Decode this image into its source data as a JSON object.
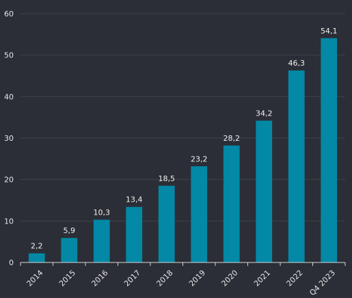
{
  "chart_data": {
    "type": "bar",
    "title": "",
    "xlabel": "",
    "ylabel": "",
    "categories": [
      "2014",
      "2015",
      "2016",
      "2017",
      "2018",
      "2019",
      "2020",
      "2021",
      "2022",
      "Q4 2023"
    ],
    "values": [
      2.2,
      5.9,
      10.3,
      13.4,
      18.5,
      23.2,
      28.2,
      34.2,
      46.3,
      54.1
    ],
    "data_labels": [
      "2,2",
      "5,9",
      "10,3",
      "13,4",
      "18,5",
      "23,2",
      "28,2",
      "34,2",
      "46,3",
      "54,1"
    ],
    "ylim": [
      0,
      60
    ],
    "yticks": [
      0,
      10,
      20,
      30,
      40,
      50,
      60
    ],
    "ytick_labels": [
      "0",
      "10",
      "20",
      "30",
      "40",
      "50",
      "60"
    ],
    "grid": true,
    "legend": "none",
    "colors": {
      "background": "#2b2e36",
      "bar": "#0388a6",
      "grid": "#3f434d",
      "axis": "#d8d8d8",
      "text": "#e6e6e6"
    }
  }
}
